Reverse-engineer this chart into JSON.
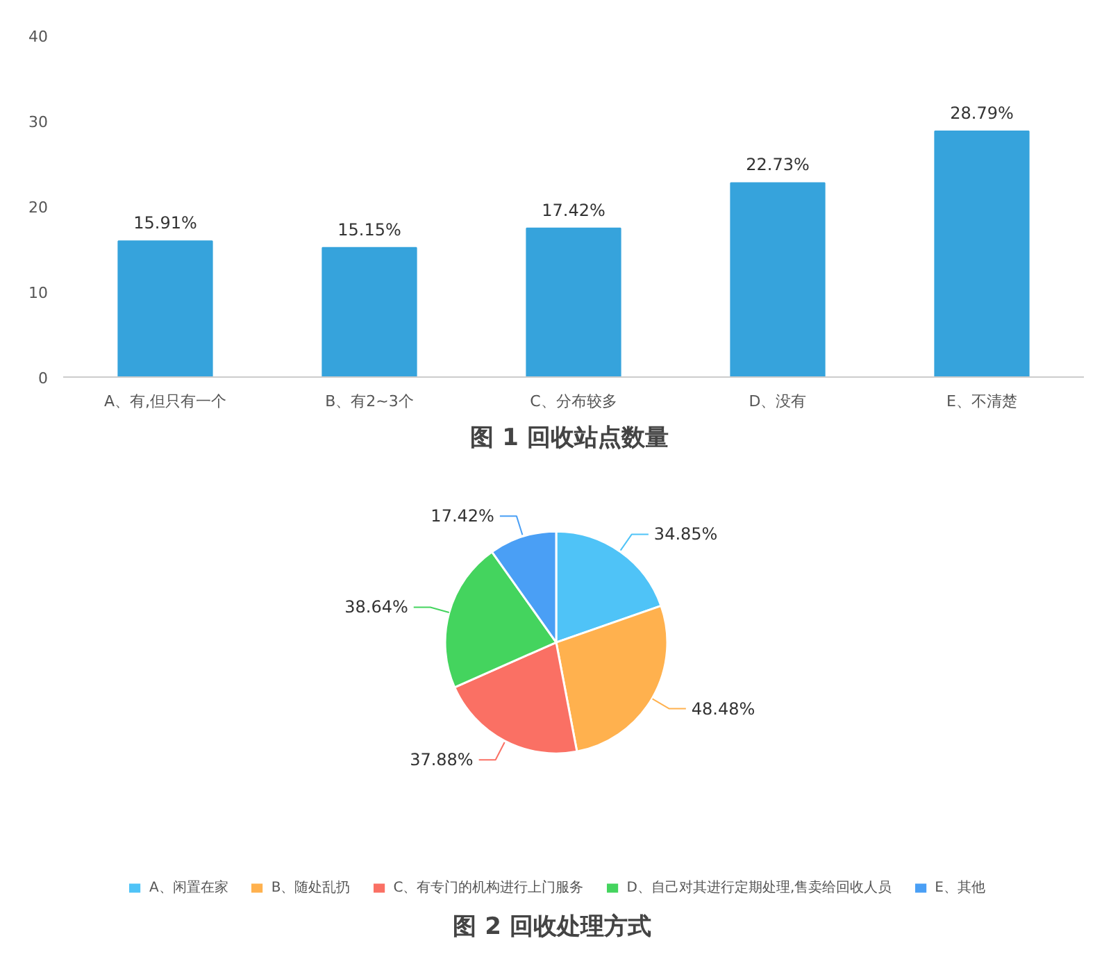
{
  "chart_data": [
    {
      "type": "bar",
      "title": "图 1  回收站点数量",
      "categories": [
        "A、有,但只有一个",
        "B、有2~3个",
        "C、分布较多",
        "D、没有",
        "E、不清楚"
      ],
      "values": [
        15.91,
        15.15,
        17.42,
        22.73,
        28.79
      ],
      "value_labels": [
        "15.91%",
        "15.15%",
        "17.42%",
        "22.73%",
        "28.79%"
      ],
      "color": "#36a3dc",
      "ylim": [
        0,
        40
      ],
      "yticks": [
        0,
        10,
        20,
        30,
        40
      ],
      "grid": false
    },
    {
      "type": "pie",
      "title": "图 2  回收处理方式",
      "categories": [
        "A、闲置在家",
        "B、随处乱扔",
        "C、有专门的机构进行上门服务",
        "D、自己对其进行定期处理,售卖给回收人员",
        "E、其他"
      ],
      "values": [
        34.85,
        48.48,
        37.88,
        38.64,
        17.42
      ],
      "value_labels": [
        "34.85%",
        "48.48%",
        "37.88%",
        "38.64%",
        "17.42%"
      ],
      "colors": [
        "#4fc3f7",
        "#ffb14e",
        "#fa7064",
        "#44d45e",
        "#4a9ff5"
      ],
      "legend": "bottom"
    }
  ]
}
